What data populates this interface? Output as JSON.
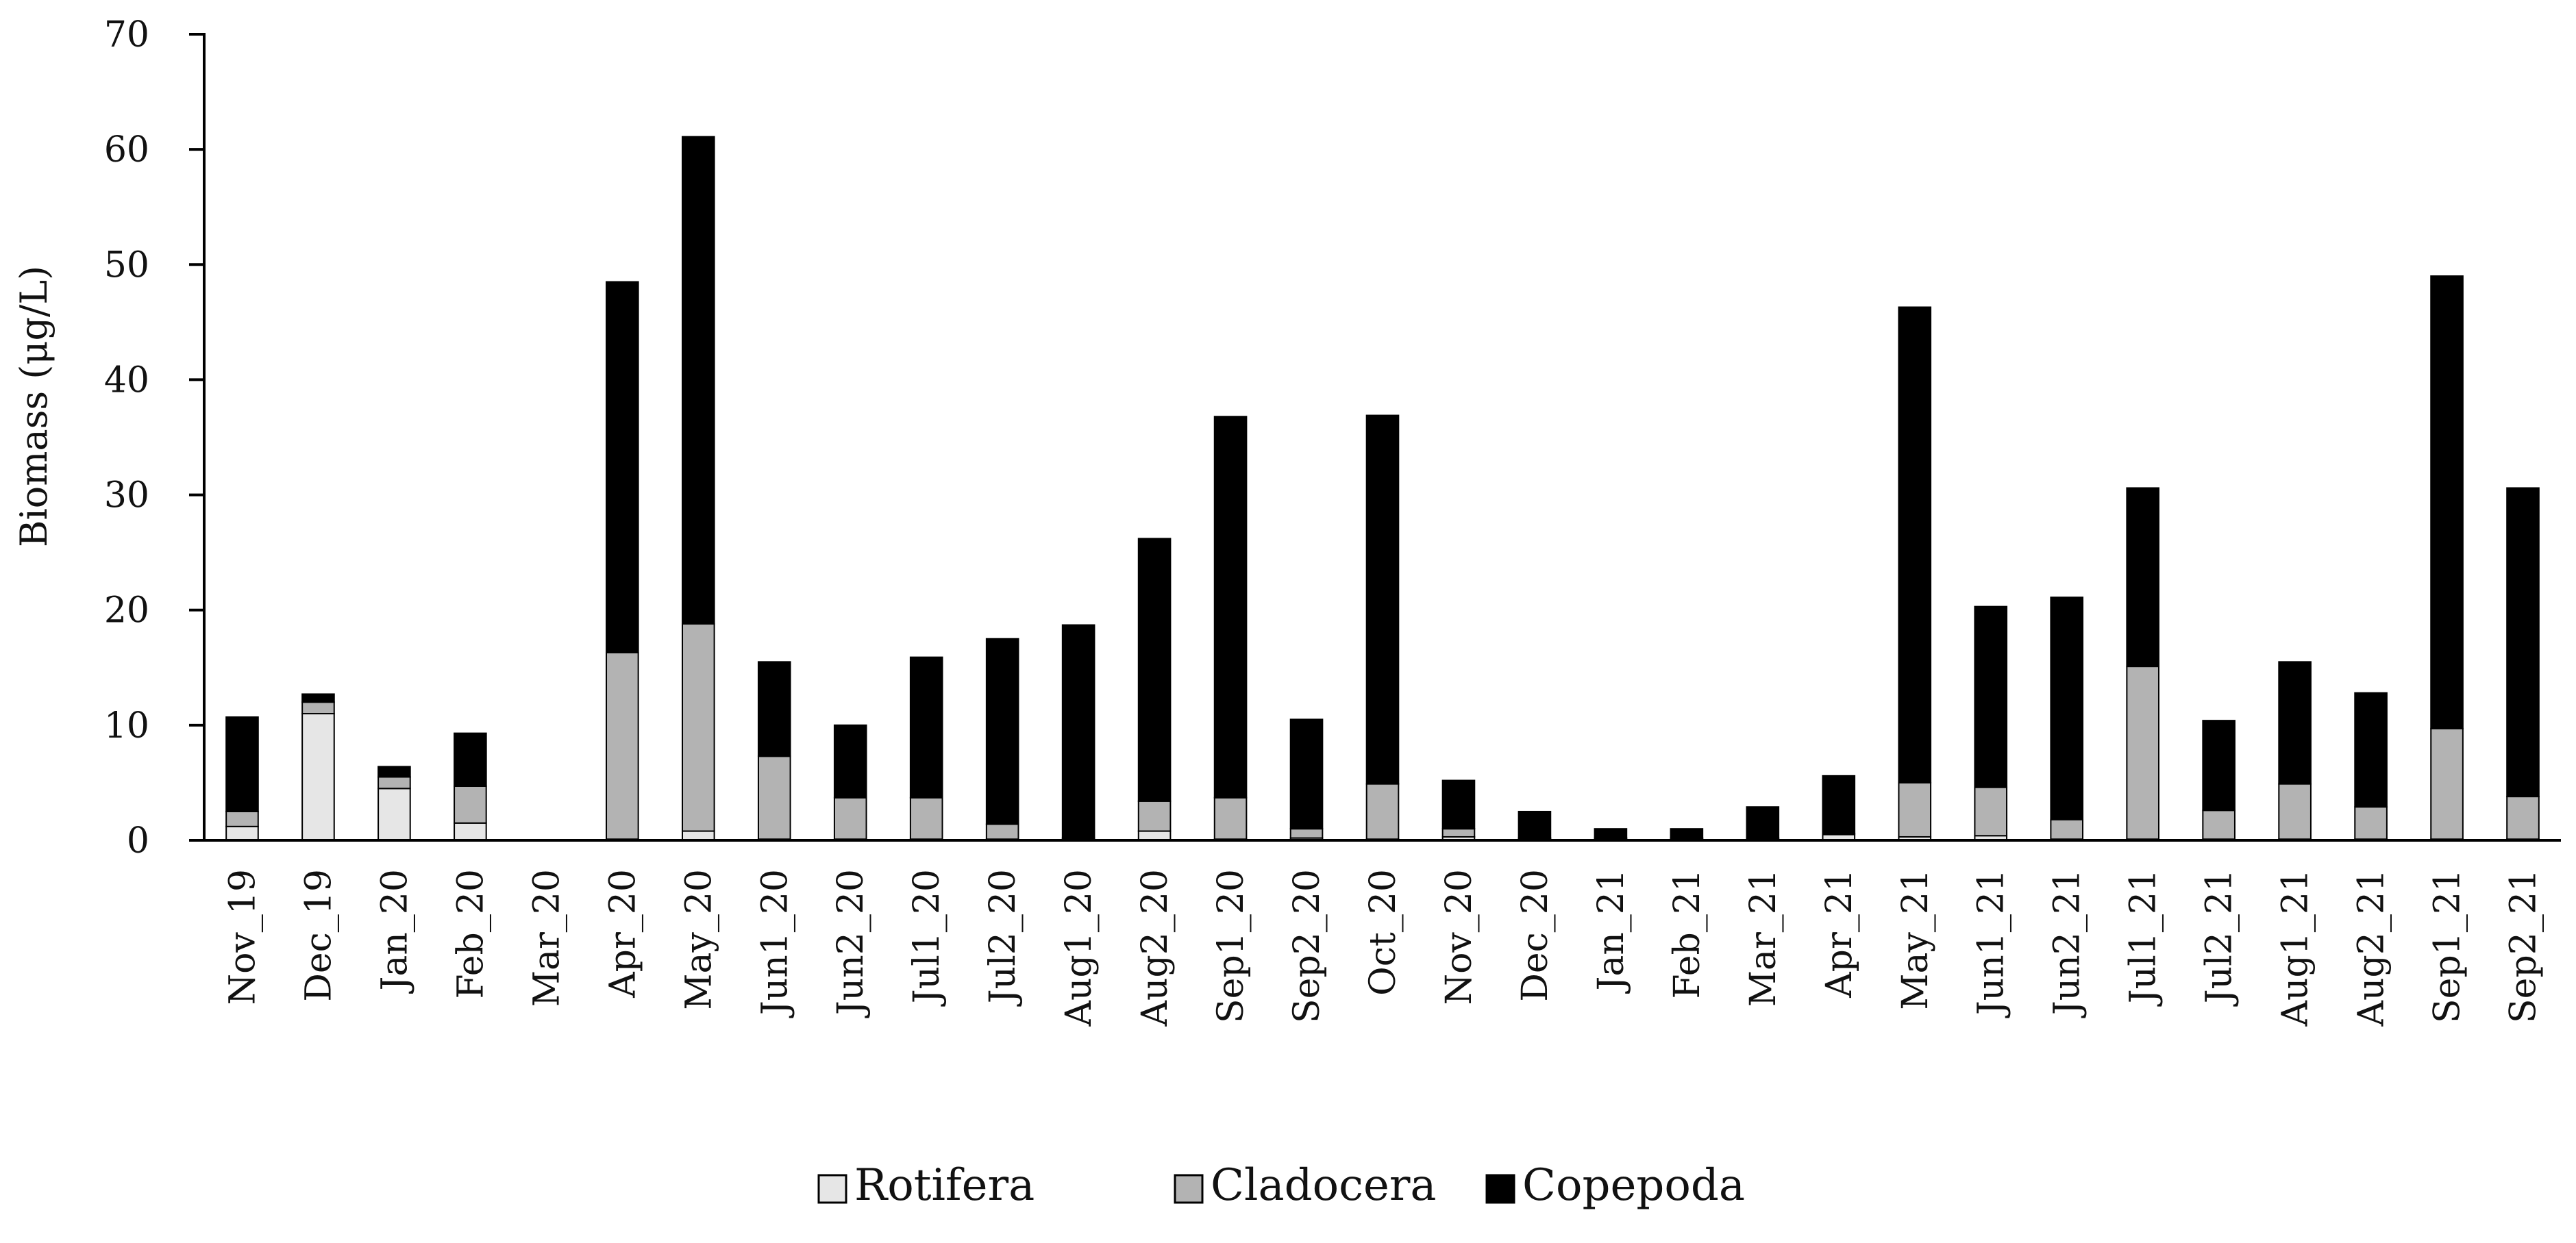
{
  "chart_data": {
    "type": "bar",
    "stacked": true,
    "title": "",
    "xlabel": "",
    "ylabel": "Biomass (μg/L)",
    "ylim": [
      0,
      70
    ],
    "yticks": [
      0,
      10,
      20,
      30,
      40,
      50,
      60,
      70
    ],
    "grid": false,
    "legend_position": "bottom-center",
    "categories": [
      "Nov_19",
      "Dec_19",
      "Jan_20",
      "Feb_20",
      "Mar_20",
      "Apr_20",
      "May_20",
      "Jun1_20",
      "Jun2_20",
      "Jul1_20",
      "Jul2_20",
      "Aug1_20",
      "Aug2_20",
      "Sep1_20",
      "Sep2_20",
      "Oct_20",
      "Nov_20",
      "Dec_20",
      "Jan_21",
      "Feb_21",
      "Mar_21",
      "Apr_21",
      "May_21",
      "Jun1_21",
      "Jun2_21",
      "Jul1_21",
      "Jul2_21",
      "Aug1_21",
      "Aug2_21",
      "Sep1_21",
      "Sep2_21"
    ],
    "series": [
      {
        "name": "Rotifera",
        "color": "#e6e6e6",
        "values": [
          1.2,
          11.0,
          4.5,
          1.5,
          0,
          0.1,
          0.8,
          0.1,
          0.1,
          0.1,
          0.1,
          0.1,
          0.8,
          0.1,
          0.2,
          0.1,
          0.3,
          0.1,
          0.1,
          0.1,
          0.1,
          0.5,
          0.3,
          0.4,
          0.1,
          0.1,
          0.1,
          0.1,
          0.1,
          0.1,
          0.1
        ]
      },
      {
        "name": "Cladocera",
        "color": "#b3b3b3",
        "values": [
          1.3,
          1.0,
          1.0,
          3.2,
          0,
          16.2,
          18.0,
          7.2,
          3.6,
          3.6,
          1.3,
          0.1,
          2.6,
          3.6,
          0.8,
          4.8,
          0.7,
          0.1,
          0.1,
          0.1,
          0.1,
          0.1,
          4.7,
          4.2,
          1.7,
          15.0,
          2.5,
          4.8,
          2.8,
          9.6,
          3.7
        ]
      },
      {
        "name": "Copepoda",
        "color": "#000000",
        "values": [
          8.2,
          0.7,
          0.9,
          4.6,
          0,
          32.2,
          42.3,
          8.2,
          6.3,
          12.2,
          16.1,
          18.5,
          22.8,
          33.1,
          9.5,
          32.0,
          4.2,
          2.3,
          0.8,
          0.8,
          2.7,
          5.0,
          41.3,
          15.7,
          19.3,
          15.5,
          7.8,
          10.6,
          9.9,
          39.3,
          26.8
        ]
      }
    ]
  }
}
